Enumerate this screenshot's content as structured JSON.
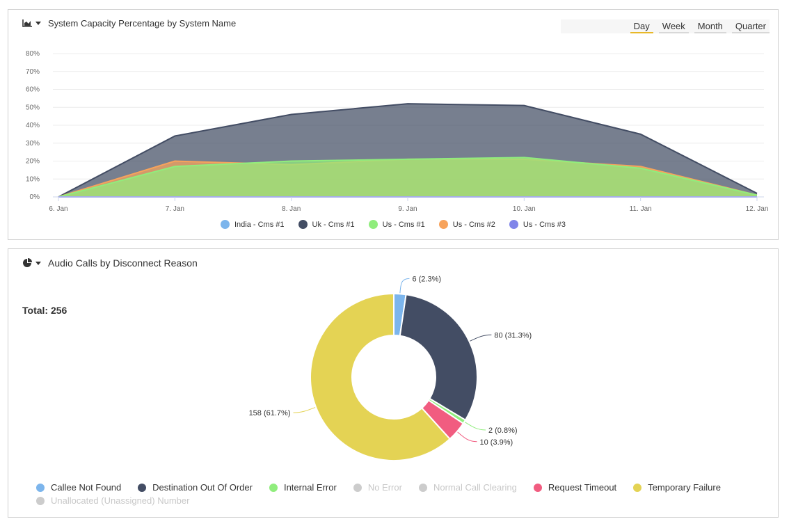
{
  "panel1": {
    "title": "System Capacity Percentage by System Name",
    "icon": "area-chart-icon",
    "tabs": [
      {
        "label": "Day",
        "active": true
      },
      {
        "label": "Week",
        "active": false
      },
      {
        "label": "Month",
        "active": false
      },
      {
        "label": "Quarter",
        "active": false
      }
    ],
    "legend": [
      {
        "label": "India - Cms #1",
        "color": "#7cb5ec"
      },
      {
        "label": "Uk - Cms #1",
        "color": "#434d64"
      },
      {
        "label": "Us - Cms #1",
        "color": "#90ed7d"
      },
      {
        "label": "Us - Cms #2",
        "color": "#f7a35c"
      },
      {
        "label": "Us - Cms #3",
        "color": "#8085e9"
      }
    ]
  },
  "panel2": {
    "title": "Audio Calls by Disconnect Reason",
    "icon": "pie-chart-icon",
    "total_label": "Total: 256",
    "legend": [
      {
        "label": "Callee Not Found",
        "color": "#7cb5ec",
        "disabled": false
      },
      {
        "label": "Destination Out Of Order",
        "color": "#434d64",
        "disabled": false
      },
      {
        "label": "Internal Error",
        "color": "#90ed7d",
        "disabled": false
      },
      {
        "label": "No Error",
        "color": "#cccccc",
        "disabled": true
      },
      {
        "label": "Normal Call Clearing",
        "color": "#cccccc",
        "disabled": true
      },
      {
        "label": "Request Timeout",
        "color": "#f15c80",
        "disabled": false
      },
      {
        "label": "Temporary Failure",
        "color": "#e4d354",
        "disabled": false
      },
      {
        "label": "Unallocated (Unassigned) Number",
        "color": "#cccccc",
        "disabled": true
      }
    ]
  },
  "chart_data": [
    {
      "type": "area",
      "title": "System Capacity Percentage by System Name",
      "categories": [
        "6. Jan",
        "7. Jan",
        "8. Jan",
        "9. Jan",
        "10. Jan",
        "11. Jan",
        "12. Jan"
      ],
      "yticks": [
        "0%",
        "10%",
        "20%",
        "30%",
        "40%",
        "50%",
        "60%",
        "70%",
        "80%"
      ],
      "ylim": [
        0,
        80
      ],
      "grid": true,
      "legend_position": "bottom",
      "series": [
        {
          "name": "India - Cms #1",
          "color": "#7cb5ec",
          "values": [
            0,
            0,
            0,
            0,
            0,
            0,
            0
          ]
        },
        {
          "name": "Uk - Cms #1",
          "color": "#434d64",
          "values": [
            0,
            34,
            46,
            52,
            51,
            35,
            2
          ]
        },
        {
          "name": "Us - Cms #1",
          "color": "#90ed7d",
          "values": [
            0,
            17,
            20,
            21,
            22,
            16,
            1
          ]
        },
        {
          "name": "Us - Cms #2",
          "color": "#f7a35c",
          "values": [
            0,
            20,
            18,
            21,
            21,
            17,
            1
          ]
        },
        {
          "name": "Us - Cms #3",
          "color": "#8085e9",
          "values": [
            0,
            0,
            0,
            0,
            0,
            0,
            0
          ]
        }
      ]
    },
    {
      "type": "pie",
      "title": "Audio Calls by Disconnect Reason",
      "total": 256,
      "slices": [
        {
          "name": "Callee Not Found",
          "value": 6,
          "label": "6 (2.3%)",
          "color": "#7cb5ec"
        },
        {
          "name": "Destination Out Of Order",
          "value": 80,
          "label": "80 (31.3%)",
          "color": "#434d64"
        },
        {
          "name": "Internal Error",
          "value": 2,
          "label": "2 (0.8%)",
          "color": "#90ed7d"
        },
        {
          "name": "Request Timeout",
          "value": 10,
          "label": "10 (3.9%)",
          "color": "#f15c80"
        },
        {
          "name": "Temporary Failure",
          "value": 158,
          "label": "158 (61.7%)",
          "color": "#e4d354"
        }
      ]
    }
  ]
}
